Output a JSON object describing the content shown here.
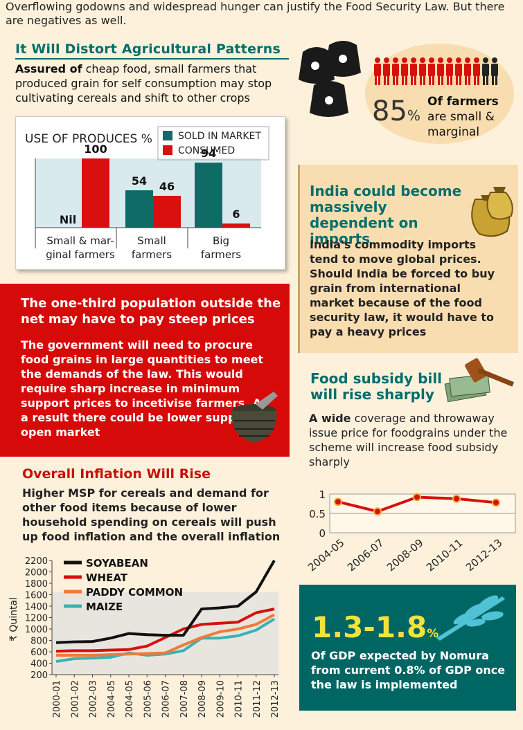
{
  "intro": "Overflowing godowns and widespread hunger can justify the Food Security Law. But there are negatives as well.",
  "sec1": {
    "title": "It Will Distort Agricultural Patterns",
    "lead": "Assured of",
    "body": " cheap food, small farmers that produced grain for self consumption may stop cultivating cereals and shift to other crops"
  },
  "farmers": {
    "pct": "85",
    "pct_sign": "%",
    "line1": "Of farmers",
    "line2": "are small &",
    "line3": "marginal"
  },
  "sec2": {
    "title": "The one-third population outside the net may have to pay steep prices",
    "lead": "The government",
    "body": " will need to procure food grains in large quantities to meet the demands of the law. This would require sharp increase in minimum support prices to incetivise farmers. As a result there could be lower supply in open market"
  },
  "sec3": {
    "title": "India could become massively dependent on imports",
    "body": "India's commodity imports tend to move global prices. Should India be forced to buy grain from international market because of the food security law, it would have to pay a heavy prices"
  },
  "sec4": {
    "title": "Food subsidy bill will rise sharply",
    "lead": "A wide",
    "body": " coverage and throwaway issue price for foodgrains under the scheme will increase food subsidy sharply"
  },
  "sec5": {
    "title": "Overall Inflation Will Rise",
    "lead": "Higher MSP",
    "body": " for cereals and demand for other food items because of lower household spending on cereals will push up food inflation and the overall inflation"
  },
  "nomura": {
    "value": "1.3-1.8",
    "sign": "%",
    "body": "Of GDP expected by Nomura from current 0.8% of GDP once the law is implemented"
  },
  "colors": {
    "teal": "#006e6c",
    "red": "#d70a0a",
    "beige": "#f8ddb0",
    "yellow": "#f0e33c"
  },
  "chart_data": [
    {
      "type": "bar",
      "title": "USE OF PRODUCES %",
      "categories": [
        "Small & marginal farmers",
        "Small farmers",
        "Big farmers"
      ],
      "category_lines": [
        [
          "Small & mar-",
          "ginal farmers"
        ],
        [
          "Small",
          "farmers"
        ],
        [
          "Big",
          "farmers"
        ]
      ],
      "series": [
        {
          "name": "SOLD IN MARKET",
          "values": [
            0,
            54,
            94
          ],
          "labels": [
            "Nil",
            "54",
            "94"
          ],
          "color": "#0f6b66"
        },
        {
          "name": "CONSUMED",
          "values": [
            100,
            46,
            6
          ],
          "labels": [
            "100",
            "46",
            "6"
          ],
          "color": "#d9100e"
        }
      ],
      "ylim": [
        0,
        100
      ]
    },
    {
      "type": "line",
      "categories": [
        "2004-05",
        "2006-07",
        "2008-09",
        "2010-11",
        "2012-13"
      ],
      "values": [
        0.8,
        0.55,
        0.92,
        0.88,
        0.78
      ],
      "yticks": [
        "0",
        "0.5",
        "1"
      ],
      "ylim": [
        0,
        1
      ]
    },
    {
      "type": "line",
      "ylabel": "₹ Quintal",
      "categories": [
        "2000-01",
        "2001-02",
        "2002-03",
        "2004-05",
        "2004-05",
        "2005-06",
        "2006-07",
        "2007-08",
        "2008-09",
        "2009-10",
        "2010-11",
        "2011-12",
        "2012-13"
      ],
      "yticks": [
        200,
        400,
        600,
        800,
        1000,
        1200,
        1400,
        1600,
        1800,
        2000,
        2200
      ],
      "ylim": [
        200,
        2200
      ],
      "series": [
        {
          "name": "SOYABEAN",
          "color": "#111111",
          "values": [
            760,
            775,
            780,
            840,
            920,
            900,
            890,
            890,
            1350,
            1370,
            1400,
            1650,
            2200
          ]
        },
        {
          "name": "WHEAT",
          "color": "#d7100c",
          "values": [
            610,
            620,
            620,
            630,
            640,
            700,
            850,
            1000,
            1080,
            1100,
            1120,
            1285,
            1350
          ]
        },
        {
          "name": "PADDY COMMON",
          "color": "#f07a3a",
          "values": [
            540,
            540,
            540,
            550,
            560,
            570,
            580,
            720,
            850,
            950,
            1000,
            1080,
            1250
          ]
        },
        {
          "name": "MAIZE",
          "color": "#38b3b0",
          "values": [
            430,
            480,
            490,
            505,
            580,
            540,
            560,
            620,
            840,
            840,
            880,
            980,
            1175
          ]
        }
      ]
    }
  ]
}
